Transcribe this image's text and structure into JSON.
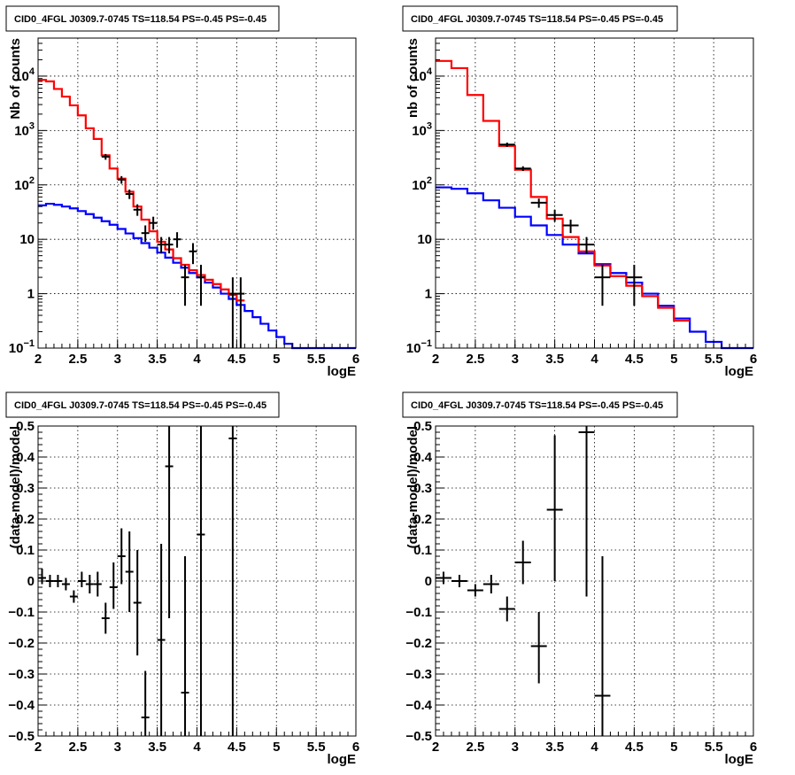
{
  "chart_data": [
    {
      "type": "line",
      "title": "CID0_4FGL J0309.7-0745 TS=118.54 PS=-0.45 PS=-0.45",
      "xlabel": "logE",
      "ylabel": "Nb of counts",
      "xlim": [
        2,
        6
      ],
      "ylim": [
        0.1,
        50000
      ],
      "yscale": "log",
      "grid": true,
      "xticks": [
        "2",
        "2.5",
        "3",
        "3.5",
        "4",
        "4.5",
        "5",
        "5.5",
        "6"
      ],
      "yticks": [
        {
          "v": 0.1,
          "label": "10",
          "sup": "−1"
        },
        {
          "v": 1,
          "label": "1",
          "sup": ""
        },
        {
          "v": 10,
          "label": "10",
          "sup": ""
        },
        {
          "v": 100,
          "label": "10",
          "sup": "2"
        },
        {
          "v": 1000,
          "label": "10",
          "sup": "3"
        },
        {
          "v": 10000,
          "label": "10",
          "sup": "4"
        }
      ],
      "bin_width": 0.1,
      "histograms": [
        {
          "color": "#0000ff",
          "edges_start": 2.0,
          "values": [
            42,
            45,
            43,
            40,
            37,
            33,
            29,
            25,
            21.5,
            18.5,
            15.5,
            12.8,
            10.5,
            8.5,
            7,
            5.7,
            4.6,
            3.7,
            3.0,
            2.4,
            2.0,
            1.6,
            1.3,
            1.0,
            0.8,
            0.62,
            0.48,
            0.37,
            0.28,
            0.21,
            0.16,
            0.12,
            0.1,
            0.1,
            0.1,
            0.1,
            0.1,
            0.1,
            0.1,
            0.1
          ]
        },
        {
          "color": "#ff0000",
          "edges_start": 2.0,
          "values": [
            8500,
            8000,
            5800,
            4200,
            2900,
            1900,
            1100,
            700,
            350,
            200,
            130,
            75,
            40,
            23,
            14,
            9,
            6.5,
            4.5,
            3.4,
            2.7,
            2.2,
            1.8,
            1.5,
            1.2,
            0.95,
            0.75
          ]
        }
      ],
      "data_points": [
        {
          "x": 2.85,
          "y": 330,
          "ylo": 290,
          "yhi": 370
        },
        {
          "x": 3.05,
          "y": 125,
          "ylo": 105,
          "yhi": 145
        },
        {
          "x": 3.15,
          "y": 68,
          "ylo": 55,
          "yhi": 82
        },
        {
          "x": 3.25,
          "y": 35,
          "ylo": 27,
          "yhi": 44
        },
        {
          "x": 3.35,
          "y": 13,
          "ylo": 9,
          "yhi": 18
        },
        {
          "x": 3.45,
          "y": 20,
          "ylo": 15,
          "yhi": 26
        },
        {
          "x": 3.55,
          "y": 8,
          "ylo": 5.5,
          "yhi": 11
        },
        {
          "x": 3.65,
          "y": 8,
          "ylo": 5.5,
          "yhi": 11
        },
        {
          "x": 3.75,
          "y": 10,
          "ylo": 7,
          "yhi": 13.5
        },
        {
          "x": 3.85,
          "y": 2,
          "ylo": 0.6,
          "yhi": 3.4
        },
        {
          "x": 3.95,
          "y": 6,
          "ylo": 3.5,
          "yhi": 8.5
        },
        {
          "x": 4.05,
          "y": 2,
          "ylo": 0.6,
          "yhi": 3.4
        },
        {
          "x": 4.45,
          "y": 1,
          "ylo": 0.1,
          "yhi": 2
        },
        {
          "x": 4.55,
          "y": 1,
          "ylo": 0.1,
          "yhi": 2
        }
      ]
    },
    {
      "type": "line",
      "title": "CID0_4FGL J0309.7-0745 TS=118.54 PS=-0.45 PS=-0.45",
      "xlabel": "logE",
      "ylabel": "nb of counts",
      "xlim": [
        2,
        6
      ],
      "ylim": [
        0.1,
        50000
      ],
      "yscale": "log",
      "grid": true,
      "xticks": [
        "2",
        "2.5",
        "3",
        "3.5",
        "4",
        "4.5",
        "5",
        "5.5",
        "6"
      ],
      "yticks": [
        {
          "v": 0.1,
          "label": "10",
          "sup": "−1"
        },
        {
          "v": 1,
          "label": "1",
          "sup": ""
        },
        {
          "v": 10,
          "label": "10",
          "sup": ""
        },
        {
          "v": 100,
          "label": "10",
          "sup": "2"
        },
        {
          "v": 1000,
          "label": "10",
          "sup": "3"
        },
        {
          "v": 10000,
          "label": "10",
          "sup": "4"
        }
      ],
      "bin_width": 0.2,
      "histograms": [
        {
          "color": "#0000ff",
          "edges_start": 2.0,
          "values": [
            90,
            85,
            70,
            52,
            38,
            26,
            18,
            12,
            8,
            5.5,
            3.5,
            2.4,
            1.6,
            1.0,
            0.6,
            0.35,
            0.2,
            0.13,
            0.1,
            0.1
          ]
        },
        {
          "color": "#ff0000",
          "edges_start": 2.0,
          "values": [
            19000,
            14000,
            4500,
            1500,
            520,
            190,
            60,
            24,
            11,
            6,
            3.3,
            2.1,
            1.4,
            0.9,
            0.55,
            0.32
          ]
        }
      ],
      "data_points": [
        {
          "x": 2.9,
          "y": 550,
          "ylo": 500,
          "yhi": 600
        },
        {
          "x": 3.1,
          "y": 200,
          "ylo": 180,
          "yhi": 220
        },
        {
          "x": 3.3,
          "y": 47,
          "ylo": 38,
          "yhi": 56
        },
        {
          "x": 3.5,
          "y": 28,
          "ylo": 21,
          "yhi": 35
        },
        {
          "x": 3.7,
          "y": 18,
          "ylo": 13,
          "yhi": 23
        },
        {
          "x": 3.9,
          "y": 8,
          "ylo": 5.5,
          "yhi": 11
        },
        {
          "x": 4.1,
          "y": 2,
          "ylo": 0.6,
          "yhi": 3.4
        },
        {
          "x": 4.5,
          "y": 2,
          "ylo": 0.6,
          "yhi": 3.4
        }
      ]
    },
    {
      "type": "scatter",
      "title": "CID0_4FGL J0309.7-0745 TS=118.54 PS=-0.45 PS=-0.45",
      "xlabel": "logE",
      "ylabel": "(data-model)/model",
      "xlim": [
        2,
        6
      ],
      "ylim": [
        -0.5,
        0.5
      ],
      "grid": true,
      "xticks": [
        "2",
        "2.5",
        "3",
        "3.5",
        "4",
        "4.5",
        "5",
        "5.5",
        "6"
      ],
      "yticks": [
        {
          "v": -0.5,
          "label": "−0.5"
        },
        {
          "v": -0.4,
          "label": "−0.4"
        },
        {
          "v": -0.3,
          "label": "−0.3"
        },
        {
          "v": -0.2,
          "label": "−0.2"
        },
        {
          "v": -0.1,
          "label": "−0.1"
        },
        {
          "v": 0,
          "label": "0"
        },
        {
          "v": 0.1,
          "label": "0.1"
        },
        {
          "v": 0.2,
          "label": "0.2"
        },
        {
          "v": 0.3,
          "label": "0.3"
        },
        {
          "v": 0.4,
          "label": "0.4"
        },
        {
          "v": 0.5,
          "label": "0.5"
        }
      ],
      "bin_width": 0.1,
      "points": [
        {
          "x": 2.05,
          "y": 0.01,
          "ylo": -0.01,
          "yhi": 0.04
        },
        {
          "x": 2.15,
          "y": 0.0,
          "ylo": -0.02,
          "yhi": 0.02
        },
        {
          "x": 2.25,
          "y": 0.0,
          "ylo": -0.02,
          "yhi": 0.02
        },
        {
          "x": 2.35,
          "y": -0.01,
          "ylo": -0.03,
          "yhi": 0.01
        },
        {
          "x": 2.45,
          "y": -0.05,
          "ylo": -0.07,
          "yhi": -0.03
        },
        {
          "x": 2.55,
          "y": 0.0,
          "ylo": -0.02,
          "yhi": 0.03
        },
        {
          "x": 2.65,
          "y": -0.01,
          "ylo": -0.04,
          "yhi": 0.02
        },
        {
          "x": 2.75,
          "y": -0.01,
          "ylo": -0.05,
          "yhi": 0.03
        },
        {
          "x": 2.85,
          "y": -0.12,
          "ylo": -0.17,
          "yhi": -0.07
        },
        {
          "x": 2.95,
          "y": -0.02,
          "ylo": -0.09,
          "yhi": 0.06
        },
        {
          "x": 3.05,
          "y": 0.08,
          "ylo": -0.01,
          "yhi": 0.17
        },
        {
          "x": 3.15,
          "y": 0.03,
          "ylo": -0.1,
          "yhi": 0.16
        },
        {
          "x": 3.25,
          "y": -0.07,
          "ylo": -0.24,
          "yhi": 0.1
        },
        {
          "x": 3.35,
          "y": -0.44,
          "ylo": -0.5,
          "yhi": -0.29
        },
        {
          "x": 3.55,
          "y": -0.19,
          "ylo": -0.5,
          "yhi": 0.12
        },
        {
          "x": 3.65,
          "y": 0.37,
          "ylo": -0.12,
          "yhi": 0.5
        },
        {
          "x": 3.85,
          "y": -0.36,
          "ylo": -0.5,
          "yhi": 0.08
        },
        {
          "x": 4.05,
          "y": 0.15,
          "ylo": -0.5,
          "yhi": 0.5
        },
        {
          "x": 4.45,
          "y": 0.46,
          "ylo": -0.5,
          "yhi": 0.5
        }
      ]
    },
    {
      "type": "scatter",
      "title": "CID0_4FGL J0309.7-0745 TS=118.54 PS=-0.45 PS=-0.45",
      "xlabel": "logE",
      "ylabel": "(data-model)/model",
      "xlim": [
        2,
        6
      ],
      "ylim": [
        -0.5,
        0.5
      ],
      "grid": true,
      "xticks": [
        "2",
        "2.5",
        "3",
        "3.5",
        "4",
        "4.5",
        "5",
        "5.5",
        "6"
      ],
      "yticks": [
        {
          "v": -0.5,
          "label": "−0.5"
        },
        {
          "v": -0.4,
          "label": "−0.4"
        },
        {
          "v": -0.3,
          "label": "−0.3"
        },
        {
          "v": -0.2,
          "label": "−0.2"
        },
        {
          "v": -0.1,
          "label": "−0.1"
        },
        {
          "v": 0,
          "label": "0"
        },
        {
          "v": 0.1,
          "label": "0.1"
        },
        {
          "v": 0.2,
          "label": "0.2"
        },
        {
          "v": 0.3,
          "label": "0.3"
        },
        {
          "v": 0.4,
          "label": "0.4"
        },
        {
          "v": 0.5,
          "label": "0.5"
        }
      ],
      "bin_width": 0.2,
      "points": [
        {
          "x": 2.1,
          "y": 0.01,
          "ylo": -0.01,
          "yhi": 0.03
        },
        {
          "x": 2.3,
          "y": 0.0,
          "ylo": -0.02,
          "yhi": 0.02
        },
        {
          "x": 2.5,
          "y": -0.03,
          "ylo": -0.05,
          "yhi": -0.01
        },
        {
          "x": 2.7,
          "y": -0.01,
          "ylo": -0.04,
          "yhi": 0.02
        },
        {
          "x": 2.9,
          "y": -0.09,
          "ylo": -0.13,
          "yhi": -0.05
        },
        {
          "x": 3.1,
          "y": 0.06,
          "ylo": -0.01,
          "yhi": 0.13
        },
        {
          "x": 3.3,
          "y": -0.21,
          "ylo": -0.33,
          "yhi": -0.1
        },
        {
          "x": 3.5,
          "y": 0.23,
          "ylo": 0.0,
          "yhi": 0.47
        },
        {
          "x": 3.9,
          "y": 0.48,
          "ylo": -0.05,
          "yhi": 0.5
        },
        {
          "x": 4.1,
          "y": -0.37,
          "ylo": -0.5,
          "yhi": 0.08
        }
      ]
    }
  ]
}
